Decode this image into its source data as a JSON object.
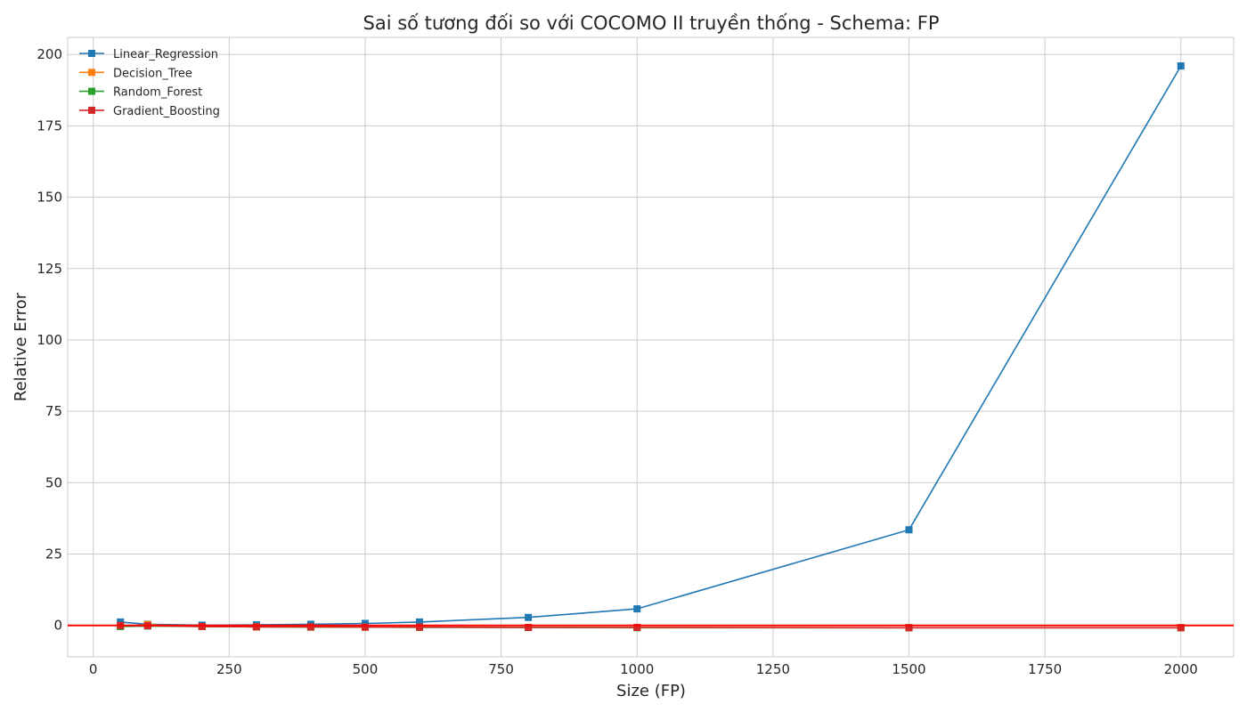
{
  "chart_data": {
    "type": "line",
    "title": "Sai số tương đối so với COCOMO II truyền thống - Schema: FP",
    "xlabel": "Size (FP)",
    "ylabel": "Relative Error",
    "xlim": [
      -47,
      2097
    ],
    "ylim": [
      -11,
      206
    ],
    "xticks": [
      0,
      250,
      500,
      750,
      1000,
      1250,
      1500,
      1750,
      2000
    ],
    "yticks": [
      0,
      25,
      50,
      75,
      100,
      125,
      150,
      175,
      200
    ],
    "grid": true,
    "legend_position": "top-left",
    "marker": "square",
    "reference_line": {
      "y": 0,
      "color": "#ff0000"
    },
    "series": [
      {
        "name": "Linear_Regression",
        "color": "#1f77b4",
        "x": [
          50,
          100,
          200,
          300,
          400,
          500,
          600,
          800,
          1000,
          1500,
          2000
        ],
        "y": [
          1.2,
          0.4,
          0.1,
          0.2,
          0.4,
          0.7,
          1.2,
          2.8,
          5.8,
          33.5,
          196
        ]
      },
      {
        "name": "Decision_Tree",
        "color": "#ff7f0e",
        "x": [
          50,
          100,
          200,
          300,
          400,
          500,
          600,
          800,
          1000,
          1500,
          2000
        ],
        "y": [
          -0.3,
          0.3,
          -0.4,
          -0.5,
          -0.6,
          -0.6,
          -0.6,
          -0.7,
          -0.7,
          -0.8,
          -0.8
        ]
      },
      {
        "name": "Random_Forest",
        "color": "#2ca02c",
        "x": [
          50,
          100,
          200,
          300,
          400,
          500,
          600,
          800,
          1000,
          1500,
          2000
        ],
        "y": [
          -0.4,
          -0.2,
          -0.4,
          -0.5,
          -0.6,
          -0.6,
          -0.7,
          -0.7,
          -0.8,
          -0.8,
          -0.8
        ]
      },
      {
        "name": "Gradient_Boosting",
        "color": "#d62728",
        "x": [
          50,
          100,
          200,
          300,
          400,
          500,
          600,
          800,
          1000,
          1500,
          2000
        ],
        "y": [
          0.0,
          -0.1,
          -0.4,
          -0.5,
          -0.5,
          -0.6,
          -0.6,
          -0.7,
          -0.7,
          -0.8,
          -0.8
        ]
      }
    ]
  }
}
